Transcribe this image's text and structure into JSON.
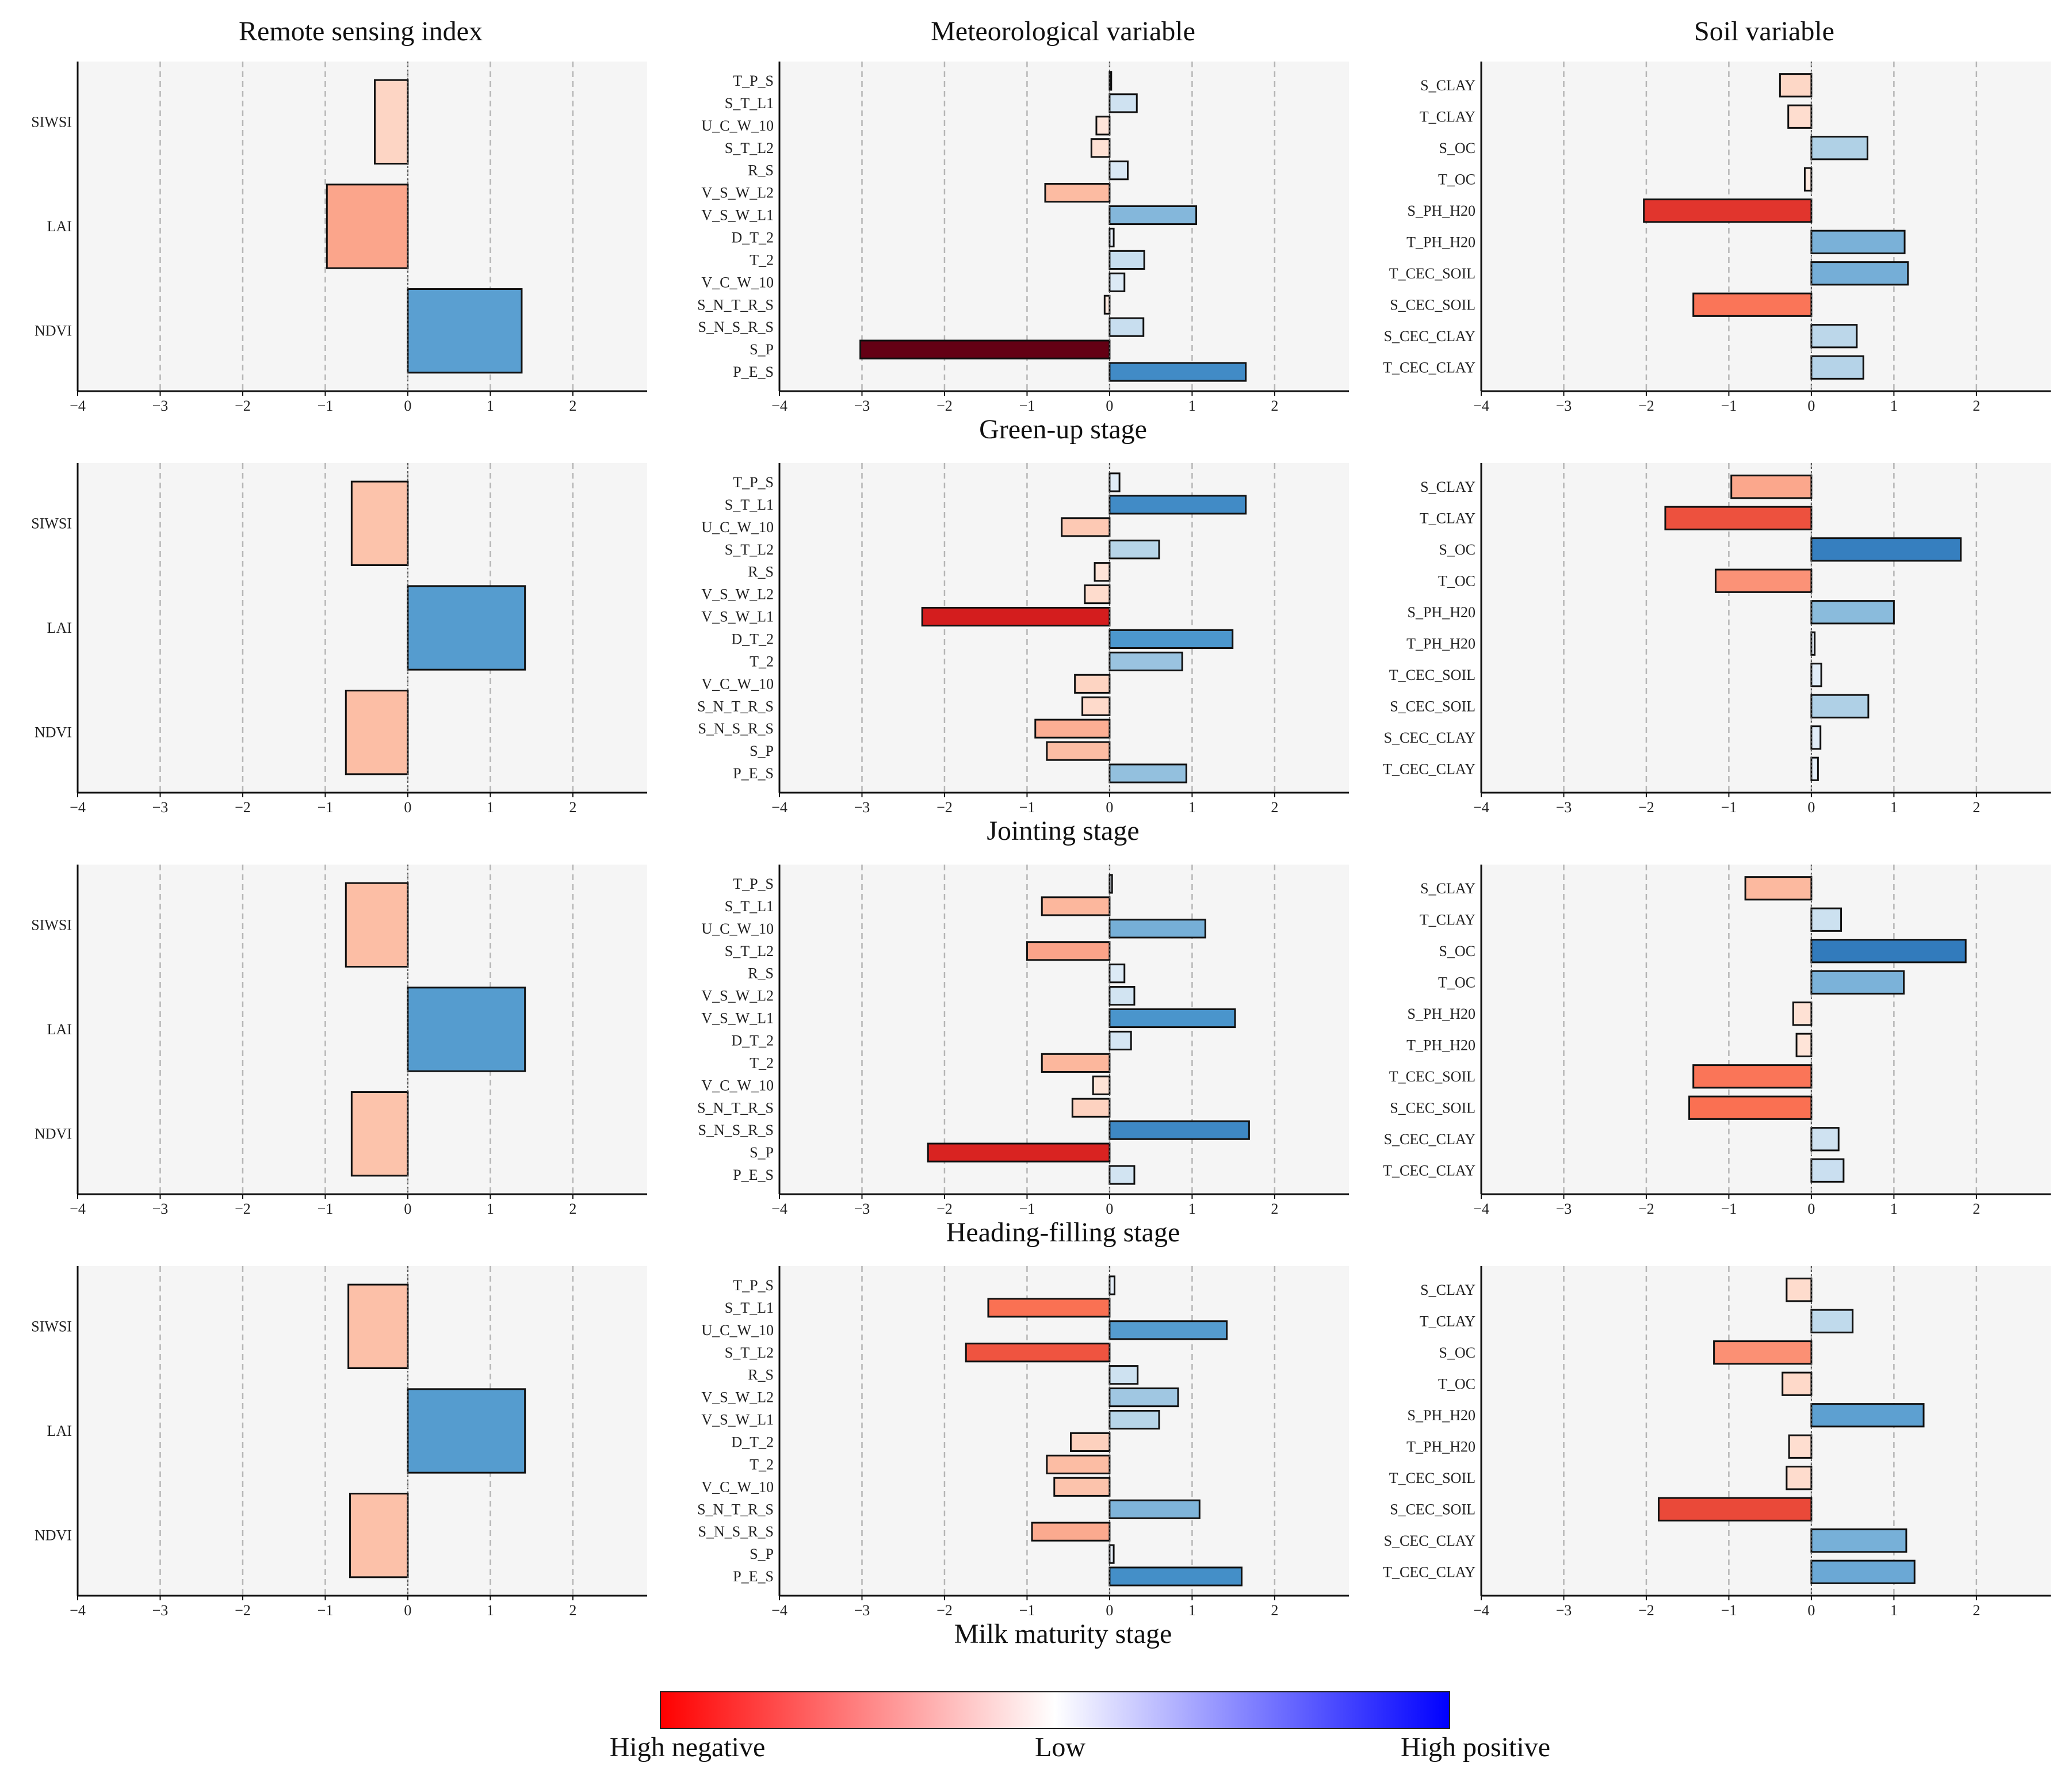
{
  "column_headers": [
    "Remote sensing index",
    "Meteorological variable",
    "Soil variable"
  ],
  "legend": {
    "labels": [
      "High negative",
      "Low",
      "High positive"
    ],
    "colors": {
      "negative": "#ff0000",
      "low": "#ffffff",
      "positive": "#0000ff"
    }
  },
  "chart_data": {
    "type": "bar",
    "orientation": "horizontal",
    "xlim": [
      -4,
      2.9
    ],
    "xticks": [
      -4,
      -3,
      -2,
      -1,
      0,
      1,
      2
    ],
    "grid": "dashed vertical at ticks",
    "stages": [
      {
        "stage": "Green-up stage",
        "panels": [
          {
            "group": "Remote sensing index",
            "categories": [
              "SIWSI",
              "LAI",
              "NDVI"
            ],
            "values": [
              -0.4,
              -0.98,
              1.38
            ]
          },
          {
            "group": "Meteorological variable",
            "categories": [
              "T_P_S",
              "S_T_L1",
              "U_C_W_10",
              "S_T_L2",
              "R_S",
              "V_S_W_L2",
              "V_S_W_L1",
              "D_T_2",
              "T_2",
              "V_C_W_10",
              "S_N_T_R_S",
              "S_N_S_R_S",
              "S_P",
              "P_E_S"
            ],
            "values": [
              0.02,
              0.33,
              -0.16,
              -0.22,
              0.22,
              -0.78,
              1.05,
              0.05,
              0.42,
              0.18,
              -0.06,
              0.41,
              -3.02,
              1.65
            ]
          },
          {
            "group": "Soil variable",
            "categories": [
              "S_CLAY",
              "T_CLAY",
              "S_OC",
              "T_OC",
              "S_PH_H20",
              "T_PH_H20",
              "T_CEC_SOIL",
              "S_CEC_SOIL",
              "S_CEC_CLAY",
              "T_CEC_CLAY"
            ],
            "values": [
              -0.38,
              -0.28,
              0.68,
              -0.08,
              -2.03,
              1.13,
              1.17,
              -1.43,
              0.55,
              0.63
            ]
          }
        ]
      },
      {
        "stage": "Jointing stage",
        "panels": [
          {
            "group": "Remote sensing index",
            "categories": [
              "SIWSI",
              "LAI",
              "NDVI"
            ],
            "values": [
              -0.68,
              1.42,
              -0.75
            ]
          },
          {
            "group": "Meteorological variable",
            "categories": [
              "T_P_S",
              "S_T_L1",
              "U_C_W_10",
              "S_T_L2",
              "R_S",
              "V_S_W_L2",
              "V_S_W_L1",
              "D_T_2",
              "T_2",
              "V_C_W_10",
              "S_N_T_R_S",
              "S_N_S_R_S",
              "S_P",
              "P_E_S"
            ],
            "values": [
              0.12,
              1.65,
              -0.58,
              0.6,
              -0.18,
              -0.3,
              -2.27,
              1.49,
              0.88,
              -0.42,
              -0.33,
              -0.9,
              -0.76,
              0.93
            ]
          },
          {
            "group": "Soil variable",
            "categories": [
              "S_CLAY",
              "T_CLAY",
              "S_OC",
              "T_OC",
              "S_PH_H20",
              "T_PH_H20",
              "T_CEC_SOIL",
              "S_CEC_SOIL",
              "S_CEC_CLAY",
              "T_CEC_CLAY"
            ],
            "values": [
              -0.97,
              -1.77,
              1.81,
              -1.16,
              1.0,
              0.04,
              0.12,
              0.69,
              0.11,
              0.08
            ]
          }
        ]
      },
      {
        "stage": "Heading-filling stage",
        "panels": [
          {
            "group": "Remote sensing index",
            "categories": [
              "SIWSI",
              "LAI",
              "NDVI"
            ],
            "values": [
              -0.75,
              1.42,
              -0.68
            ]
          },
          {
            "group": "Meteorological variable",
            "categories": [
              "T_P_S",
              "S_T_L1",
              "U_C_W_10",
              "S_T_L2",
              "R_S",
              "V_S_W_L2",
              "V_S_W_L1",
              "D_T_2",
              "T_2",
              "V_C_W_10",
              "S_N_T_R_S",
              "S_N_S_R_S",
              "S_P",
              "P_E_S"
            ],
            "values": [
              0.03,
              -0.82,
              1.16,
              -1.0,
              0.18,
              0.3,
              1.52,
              0.26,
              -0.82,
              -0.2,
              -0.45,
              1.69,
              -2.2,
              0.3
            ]
          },
          {
            "group": "Soil variable",
            "categories": [
              "S_CLAY",
              "T_CLAY",
              "S_OC",
              "T_OC",
              "S_PH_H20",
              "T_PH_H20",
              "T_CEC_SOIL",
              "S_CEC_SOIL",
              "S_CEC_CLAY",
              "T_CEC_CLAY"
            ],
            "values": [
              -0.8,
              0.36,
              1.87,
              1.12,
              -0.22,
              -0.18,
              -1.43,
              -1.48,
              0.33,
              0.39
            ]
          }
        ]
      },
      {
        "stage": "Milk maturity stage",
        "panels": [
          {
            "group": "Remote sensing index",
            "categories": [
              "SIWSI",
              "LAI",
              "NDVI"
            ],
            "values": [
              -0.72,
              1.42,
              -0.7
            ]
          },
          {
            "group": "Meteorological variable",
            "categories": [
              "T_P_S",
              "S_T_L1",
              "U_C_W_10",
              "S_T_L2",
              "R_S",
              "V_S_W_L2",
              "V_S_W_L1",
              "D_T_2",
              "T_2",
              "V_C_W_10",
              "S_N_T_R_S",
              "S_N_S_R_S",
              "S_P",
              "P_E_S"
            ],
            "values": [
              0.06,
              -1.47,
              1.42,
              -1.74,
              0.34,
              0.83,
              0.6,
              -0.47,
              -0.76,
              -0.67,
              1.09,
              -0.94,
              0.05,
              1.6
            ]
          },
          {
            "group": "Soil variable",
            "categories": [
              "S_CLAY",
              "T_CLAY",
              "S_OC",
              "T_OC",
              "S_PH_H20",
              "T_PH_H20",
              "T_CEC_SOIL",
              "S_CEC_SOIL",
              "S_CEC_CLAY",
              "T_CEC_CLAY"
            ],
            "values": [
              -0.3,
              0.5,
              -1.18,
              -0.35,
              1.36,
              -0.27,
              -0.3,
              -1.85,
              1.15,
              1.25
            ]
          }
        ]
      }
    ]
  }
}
